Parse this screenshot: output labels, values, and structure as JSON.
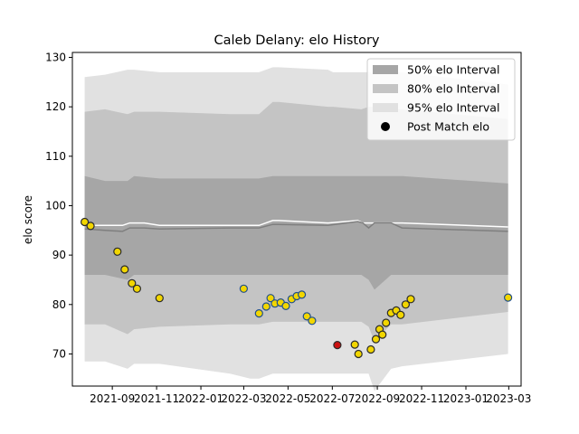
{
  "chart_data": {
    "type": "line",
    "title": "Caleb Delany: elo History",
    "xlabel": "",
    "ylabel": "elo score",
    "xlim": [
      "2021-07-08",
      "2023-03-18"
    ],
    "ylim": [
      63.5,
      131
    ],
    "x_ticks": [
      {
        "date": "2021-09-01",
        "label": "2021-09"
      },
      {
        "date": "2021-11-01",
        "label": "2021-11"
      },
      {
        "date": "2022-01-01",
        "label": "2022-01"
      },
      {
        "date": "2022-03-01",
        "label": "2022-03"
      },
      {
        "date": "2022-05-01",
        "label": "2022-05"
      },
      {
        "date": "2022-07-01",
        "label": "2022-07"
      },
      {
        "date": "2022-09-01",
        "label": "2022-09"
      },
      {
        "date": "2022-11-01",
        "label": "2022-11"
      },
      {
        "date": "2023-01-01",
        "label": "2023-01"
      },
      {
        "date": "2023-03-01",
        "label": "2023-03"
      }
    ],
    "y_ticks": [
      70,
      80,
      90,
      100,
      110,
      120,
      130
    ],
    "grid": false,
    "legend_position": "top-right",
    "legend": [
      {
        "label": "50% elo Interval",
        "kind": "band",
        "color": "#a6a6a6"
      },
      {
        "label": "80% elo Interval",
        "kind": "band",
        "color": "#c4c4c4"
      },
      {
        "label": "95% elo Interval",
        "kind": "band",
        "color": "#e1e1e1"
      },
      {
        "label": "Post Match elo",
        "kind": "marker",
        "color": "#000000"
      }
    ],
    "bands": {
      "x": [
        "2021-07-25",
        "2021-08-22",
        "2021-09-22",
        "2021-10-01",
        "2021-11-05",
        "2022-02-10",
        "2022-03-10",
        "2022-03-22",
        "2022-04-10",
        "2022-04-18",
        "2022-06-25",
        "2022-07-02",
        "2022-08-10",
        "2022-08-20",
        "2022-08-28",
        "2022-09-20",
        "2022-10-05",
        "2023-02-28"
      ],
      "ci50_low": [
        86,
        86,
        85,
        86,
        86,
        86,
        86,
        86,
        86,
        86,
        86,
        86,
        86,
        85,
        83,
        86,
        86,
        86
      ],
      "ci50_high": [
        106,
        105,
        105,
        106,
        105.5,
        105.5,
        105.5,
        105.5,
        106,
        106,
        106,
        106,
        106,
        106,
        106,
        106,
        106,
        104.5
      ],
      "ci80_low": [
        76,
        76,
        74,
        75,
        75.5,
        76,
        76,
        76,
        76.5,
        76.5,
        76.5,
        76.5,
        76.5,
        75.5,
        72.5,
        76,
        76,
        78.5
      ],
      "ci80_high": [
        119,
        119.5,
        118.5,
        119,
        119,
        118.5,
        118.5,
        118.5,
        121,
        121,
        120,
        120,
        119.5,
        120,
        120,
        119.5,
        119.5,
        117.5
      ],
      "ci95_low": [
        68.5,
        68.5,
        67,
        68,
        68,
        66,
        65,
        65,
        66,
        66,
        66,
        66,
        66,
        66,
        62.5,
        67,
        67.5,
        70
      ],
      "ci95_high": [
        126,
        126.5,
        127.5,
        127.5,
        127,
        127,
        127,
        127,
        128,
        128,
        127.5,
        127,
        127,
        127,
        127,
        127,
        127,
        124.5
      ]
    },
    "series": [
      {
        "kind": "line",
        "color": "#ffffff",
        "x": [
          "2021-07-25",
          "2021-08-22",
          "2021-09-15",
          "2021-09-25",
          "2021-10-05",
          "2021-10-15",
          "2021-11-05",
          "2022-02-10",
          "2022-03-10",
          "2022-03-22",
          "2022-04-10",
          "2022-04-18",
          "2022-06-25",
          "2022-08-05",
          "2022-08-12",
          "2022-08-20",
          "2022-08-28",
          "2022-09-20",
          "2022-10-05",
          "2023-02-28"
        ],
        "y": [
          96,
          96,
          96,
          96.5,
          96.5,
          96.5,
          96,
          96,
          96,
          96,
          97,
          97,
          96.5,
          97,
          96.5,
          96.5,
          96.5,
          96.5,
          96.5,
          95.7
        ]
      },
      {
        "kind": "line",
        "color": "#7f7f7f",
        "x": [
          "2021-07-25",
          "2021-08-22",
          "2021-09-15",
          "2021-09-25",
          "2021-10-05",
          "2021-10-15",
          "2021-11-05",
          "2022-02-10",
          "2022-03-10",
          "2022-03-22",
          "2022-04-10",
          "2022-04-18",
          "2022-06-25",
          "2022-08-05",
          "2022-08-12",
          "2022-08-20",
          "2022-08-28",
          "2022-09-20",
          "2022-10-05",
          "2023-02-28"
        ],
        "y": [
          95.3,
          95,
          94.8,
          95.5,
          95.5,
          95.5,
          95.3,
          95.5,
          95.5,
          95.5,
          96.2,
          96.2,
          96,
          96.8,
          96.5,
          95.5,
          96.5,
          96.5,
          95.5,
          94.8
        ]
      },
      {
        "name": "Post Match elo",
        "kind": "scatter",
        "x": [
          "2021-07-25",
          "2021-08-02",
          "2021-09-08",
          "2021-09-18",
          "2021-09-28",
          "2021-10-05",
          "2021-11-05",
          "2022-03-01",
          "2022-03-22",
          "2022-04-01",
          "2022-04-07",
          "2022-04-13",
          "2022-04-21",
          "2022-04-28",
          "2022-05-06",
          "2022-05-13",
          "2022-05-20",
          "2022-05-27",
          "2022-06-03",
          "2022-07-08",
          "2022-08-01",
          "2022-08-06",
          "2022-08-23",
          "2022-08-30",
          "2022-09-04",
          "2022-09-08",
          "2022-09-13",
          "2022-09-20",
          "2022-09-27",
          "2022-10-03",
          "2022-10-10",
          "2022-10-17",
          "2023-02-28"
        ],
        "y": [
          96.7,
          95.9,
          90.7,
          87.1,
          84.3,
          83.2,
          81.3,
          83.2,
          78.2,
          79.6,
          81.3,
          80.2,
          80.4,
          79.7,
          81.1,
          81.7,
          82.0,
          77.6,
          76.7,
          71.8,
          71.9,
          70.0,
          70.9,
          73.0,
          75.0,
          73.9,
          76.3,
          78.3,
          78.8,
          77.9,
          80.0,
          81.1,
          81.4
        ],
        "fill": [
          "#f2d600",
          "#f2d600",
          "#f2d600",
          "#f2d600",
          "#f2d600",
          "#f2d600",
          "#f2d600",
          "#f2d600",
          "#f2d600",
          "#f2d600",
          "#f2d600",
          "#f2d600",
          "#f2d600",
          "#f2d600",
          "#f2d600",
          "#f2d600",
          "#f2d600",
          "#f2d600",
          "#f2d600",
          "#cc1111",
          "#f2d600",
          "#f2d600",
          "#f2d600",
          "#f2d600",
          "#f2d600",
          "#f2d600",
          "#f2d600",
          "#f2d600",
          "#f2d600",
          "#f2d600",
          "#f2d600",
          "#f2d600",
          "#f2d600"
        ],
        "edge": [
          "#2a2a2a",
          "#2a2a2a",
          "#2a2a2a",
          "#2a2a2a",
          "#2a2a2a",
          "#2a2a2a",
          "#2a2a2a",
          "#1f4e8c",
          "#1f4e8c",
          "#1f4e8c",
          "#1f4e8c",
          "#1f4e8c",
          "#1f4e8c",
          "#1f4e8c",
          "#1f4e8c",
          "#1f4e8c",
          "#1f4e8c",
          "#1f4e8c",
          "#1f4e8c",
          "#2a2a2a",
          "#2a2a2a",
          "#2a2a2a",
          "#2a2a2a",
          "#2a2a2a",
          "#2a2a2a",
          "#2a2a2a",
          "#2a2a2a",
          "#2a2a2a",
          "#2a2a2a",
          "#2a2a2a",
          "#2a2a2a",
          "#2a2a2a",
          "#1f4e8c"
        ]
      }
    ]
  }
}
